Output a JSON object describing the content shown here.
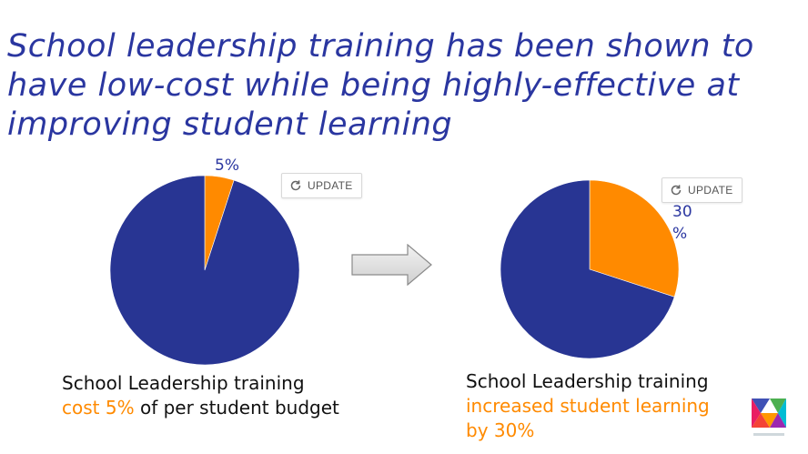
{
  "title": "School leadership training has been shown to have low-cost while being highly-effective at improving student learning",
  "update_button": {
    "label": "UPDATE",
    "icon": "refresh-icon"
  },
  "colors": {
    "title": "#2a36a0",
    "main_slice": "#283593",
    "highlight_slice": "#ff8a00",
    "highlight_text": "#ff8a00"
  },
  "left_caption": {
    "line1": "School Leadership training",
    "line2_highlight": "cost 5%",
    "line2_rest": " of per student budget"
  },
  "right_caption": {
    "line1": "School Leadership training",
    "line2_highlight": "increased student learning",
    "line3_highlight": "by 30%"
  },
  "chart_data": [
    {
      "type": "pie",
      "slices": [
        {
          "label": "5%",
          "value": 5,
          "color": "#ff8a00"
        },
        {
          "label": "",
          "value": 95,
          "color": "#283593"
        }
      ],
      "data_label": "5%"
    },
    {
      "type": "pie",
      "slices": [
        {
          "label": "30%",
          "value": 30,
          "color": "#ff8a00"
        },
        {
          "label": "",
          "value": 70,
          "color": "#283593"
        }
      ],
      "data_label": "30\n%"
    }
  ]
}
